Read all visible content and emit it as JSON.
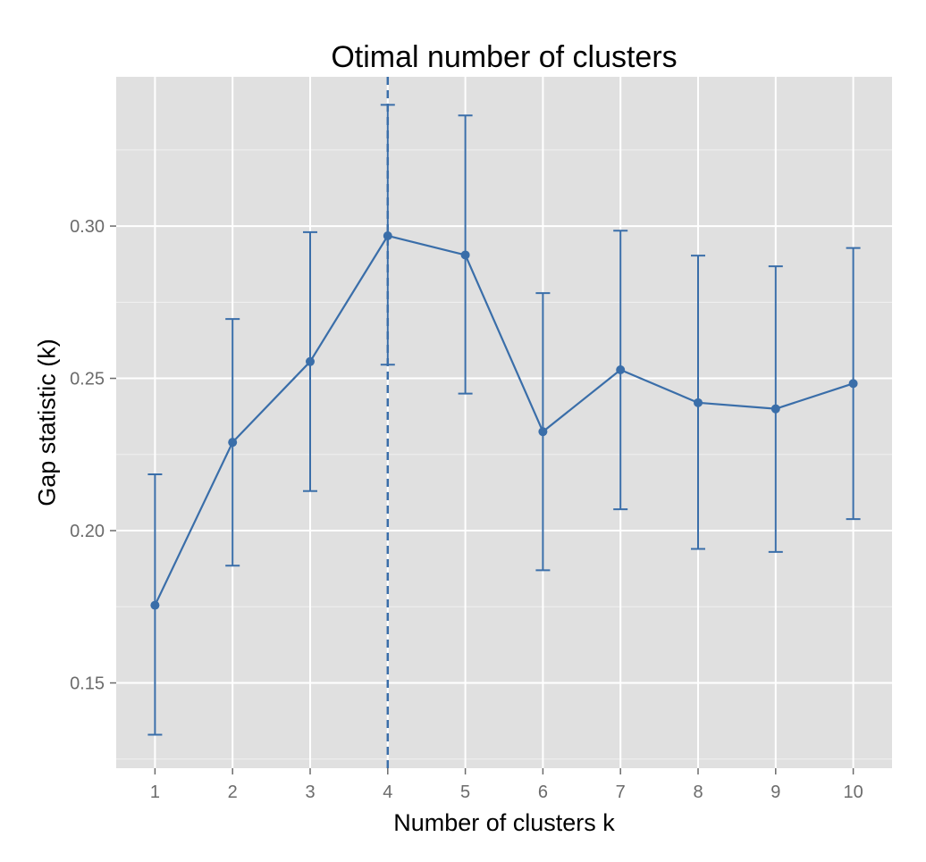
{
  "chart_data": {
    "type": "line",
    "title": "Otimal number of clusters",
    "xlabel": "Number of clusters k",
    "ylabel": "Gap statistic (k)",
    "x": [
      1,
      2,
      3,
      4,
      5,
      6,
      7,
      8,
      9,
      10
    ],
    "x_tick_labels": [
      "1",
      "2",
      "3",
      "4",
      "5",
      "6",
      "7",
      "8",
      "9",
      "10"
    ],
    "y_ticks": [
      0.15,
      0.2,
      0.25,
      0.3
    ],
    "y_tick_labels": [
      "0.15",
      "0.20",
      "0.25",
      "0.30"
    ],
    "xlim": [
      0.5,
      10.5
    ],
    "ylim": [
      0.122,
      0.349
    ],
    "series": [
      {
        "values": [
          0.1755,
          0.229,
          0.2555,
          0.2968,
          0.2905,
          0.2325,
          0.2528,
          0.242,
          0.24,
          0.2483
        ],
        "error_lower": [
          0.133,
          0.1885,
          0.213,
          0.2545,
          0.245,
          0.187,
          0.207,
          0.194,
          0.193,
          0.2038
        ],
        "error_upper": [
          0.2185,
          0.2695,
          0.298,
          0.3398,
          0.3363,
          0.278,
          0.2985,
          0.2903,
          0.2868,
          0.2928
        ],
        "color": "#3a6ea9"
      }
    ],
    "optimal_k": 4,
    "reference_line": {
      "orientation": "vertical",
      "x": 4,
      "style": "dashed",
      "color": "#3a6ea9"
    },
    "grid": true,
    "panel_background": "#e0e0e0",
    "grid_color": "#ffffff"
  }
}
